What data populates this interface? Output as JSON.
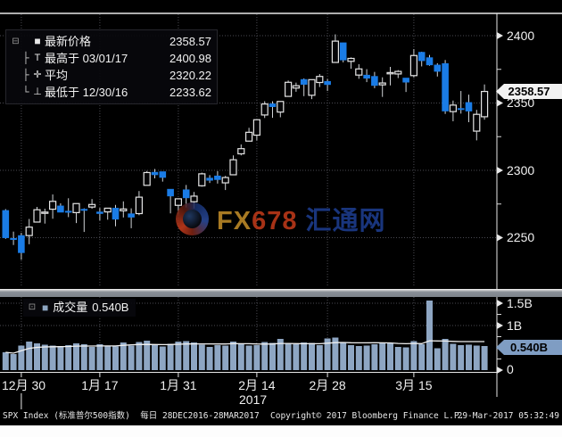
{
  "legend": {
    "expander_icon": "box-minus-expander",
    "rows": [
      {
        "marker": "last-price-square",
        "label": "最新价格",
        "value": "2358.57"
      },
      {
        "marker": "high-whisker",
        "label": "最高于 03/01/17",
        "value": "2400.98"
      },
      {
        "marker": "average-cross",
        "label": "平均",
        "value": "2320.22"
      },
      {
        "marker": "low-whisker",
        "label": "最低于 12/30/16",
        "value": "2233.62"
      }
    ]
  },
  "volume_legend": {
    "label": "成交量",
    "value": "0.540B"
  },
  "price_axis": {
    "tick_labels": [
      "2400",
      "2350",
      "2300",
      "2250"
    ],
    "last_price_tag": "2358.57"
  },
  "volume_axis": {
    "tick_labels": [
      "1.5B",
      "1B",
      "0"
    ],
    "current_tag": "0.540B"
  },
  "x_axis": {
    "year_label": "2017",
    "tick_labels": [
      "12月 30",
      "1月 17",
      "1月 31",
      "2月 14",
      "2月 28",
      "3月 15"
    ]
  },
  "watermark": {
    "fx": "FX",
    "num": "678",
    "cn": "汇通网"
  },
  "status_bar": {
    "instrument": "SPX Index (标准普尔500指数)",
    "frequency": "每日",
    "range": "28DEC2016-28MAR2017",
    "copyright": "Copyright© 2017 Bloomberg Finance L.P.",
    "timestamp": "29-Mar-2017 05:32:49"
  },
  "colors": {
    "down_candle": "#1a7ce6",
    "up_candle_outline": "#e4e4e4",
    "volume_bar": "#8ea6c3",
    "grid": "#4a4a52",
    "frame": "#e8e8e8",
    "tag_volume_bg": "#7f9dc3"
  },
  "chart_data": {
    "type": "candlestick",
    "title": "SPX Index (标准普尔500指数) 每日 28DEC2016-28MAR2017",
    "price_ylim": [
      2233.62,
      2400.98
    ],
    "price_major_ticks": [
      2400,
      2350,
      2300,
      2250
    ],
    "price_minor_ticks": [
      2375,
      2325,
      2275
    ],
    "volume_ylim_b": [
      0,
      1.5
    ],
    "volume_major_ticks_b": [
      1.5,
      1.0,
      0
    ],
    "volume_minor_ticks_b": [
      1.25,
      0.75,
      0.25
    ],
    "last_price": 2358.57,
    "high": {
      "date": "03/01/17",
      "value": 2400.98
    },
    "average": 2320.22,
    "low": {
      "date": "12/30/16",
      "value": 2233.62
    },
    "current_volume_b": 0.54,
    "x_ticks": [
      {
        "label": "12月 30",
        "day_index": 2
      },
      {
        "label": "1月 17",
        "day_index": 12
      },
      {
        "label": "1月 31",
        "day_index": 22
      },
      {
        "label": "2月 14",
        "day_index": 32
      },
      {
        "label": "2月 28",
        "day_index": 41
      },
      {
        "label": "3月 15",
        "day_index": 52
      }
    ],
    "days": [
      {
        "d": "12/28",
        "o": 2270.23,
        "h": 2271.23,
        "l": 2249.11,
        "c": 2249.92,
        "v": 0.4
      },
      {
        "d": "12/29",
        "o": 2249.5,
        "h": 2254.51,
        "l": 2244.56,
        "c": 2249.26,
        "v": 0.36
      },
      {
        "d": "12/30",
        "o": 2251.61,
        "h": 2253.58,
        "l": 2233.62,
        "c": 2238.83,
        "v": 0.55
      },
      {
        "d": "01/03",
        "o": 2251.57,
        "h": 2263.88,
        "l": 2245.13,
        "c": 2257.83,
        "v": 0.64
      },
      {
        "d": "01/04",
        "o": 2261.6,
        "h": 2272.82,
        "l": 2261.6,
        "c": 2270.75,
        "v": 0.6
      },
      {
        "d": "01/05",
        "o": 2268.18,
        "h": 2271.5,
        "l": 2260.45,
        "c": 2269.0,
        "v": 0.57
      },
      {
        "d": "01/06",
        "o": 2271.14,
        "h": 2282.1,
        "l": 2264.06,
        "c": 2276.98,
        "v": 0.55
      },
      {
        "d": "01/09",
        "o": 2273.59,
        "h": 2275.49,
        "l": 2268.9,
        "c": 2268.9,
        "v": 0.54
      },
      {
        "d": "01/10",
        "o": 2269.72,
        "h": 2279.27,
        "l": 2265.27,
        "c": 2268.9,
        "v": 0.56
      },
      {
        "d": "01/11",
        "o": 2268.6,
        "h": 2275.32,
        "l": 2260.83,
        "c": 2275.32,
        "v": 0.6
      },
      {
        "d": "01/12",
        "o": 2271.14,
        "h": 2271.78,
        "l": 2254.25,
        "c": 2270.44,
        "v": 0.58
      },
      {
        "d": "01/13",
        "o": 2272.74,
        "h": 2278.68,
        "l": 2271.51,
        "c": 2274.64,
        "v": 0.52
      },
      {
        "d": "01/17",
        "o": 2269.14,
        "h": 2272.08,
        "l": 2262.81,
        "c": 2267.89,
        "v": 0.58
      },
      {
        "d": "01/18",
        "o": 2269.14,
        "h": 2272.01,
        "l": 2263.35,
        "c": 2271.89,
        "v": 0.54
      },
      {
        "d": "01/19",
        "o": 2271.94,
        "h": 2274.33,
        "l": 2258.41,
        "c": 2263.69,
        "v": 0.53
      },
      {
        "d": "01/20",
        "o": 2269.96,
        "h": 2276.96,
        "l": 2265.01,
        "c": 2271.31,
        "v": 0.62
      },
      {
        "d": "01/23",
        "o": 2267.78,
        "h": 2271.78,
        "l": 2257.02,
        "c": 2265.2,
        "v": 0.55
      },
      {
        "d": "01/24",
        "o": 2267.88,
        "h": 2284.63,
        "l": 2266.68,
        "c": 2280.07,
        "v": 0.63
      },
      {
        "d": "01/25",
        "o": 2288.88,
        "h": 2299.55,
        "l": 2288.88,
        "c": 2298.37,
        "v": 0.66
      },
      {
        "d": "01/26",
        "o": 2298.63,
        "h": 2300.99,
        "l": 2294.08,
        "c": 2296.68,
        "v": 0.58
      },
      {
        "d": "01/27",
        "o": 2299.02,
        "h": 2299.02,
        "l": 2291.62,
        "c": 2294.69,
        "v": 0.53
      },
      {
        "d": "01/30",
        "o": 2286.01,
        "h": 2286.01,
        "l": 2268.04,
        "c": 2280.9,
        "v": 0.59
      },
      {
        "d": "01/31",
        "o": 2274.02,
        "h": 2279.09,
        "l": 2267.21,
        "c": 2278.87,
        "v": 0.64
      },
      {
        "d": "02/01",
        "o": 2285.59,
        "h": 2289.14,
        "l": 2272.44,
        "c": 2279.55,
        "v": 0.65
      },
      {
        "d": "02/02",
        "o": 2276.69,
        "h": 2283.97,
        "l": 2271.65,
        "c": 2280.85,
        "v": 0.62
      },
      {
        "d": "02/03",
        "o": 2288.54,
        "h": 2298.31,
        "l": 2287.88,
        "c": 2297.42,
        "v": 0.57
      },
      {
        "d": "02/06",
        "o": 2294.28,
        "h": 2296.47,
        "l": 2290.61,
        "c": 2292.56,
        "v": 0.52
      },
      {
        "d": "02/07",
        "o": 2295.87,
        "h": 2299.39,
        "l": 2290.16,
        "c": 2293.08,
        "v": 0.56
      },
      {
        "d": "02/08",
        "o": 2290.71,
        "h": 2295.91,
        "l": 2285.38,
        "c": 2294.67,
        "v": 0.55
      },
      {
        "d": "02/09",
        "o": 2296.7,
        "h": 2311.08,
        "l": 2296.61,
        "c": 2307.87,
        "v": 0.64
      },
      {
        "d": "02/10",
        "o": 2312.27,
        "h": 2319.23,
        "l": 2311.1,
        "c": 2316.1,
        "v": 0.58
      },
      {
        "d": "02/13",
        "o": 2321.7,
        "h": 2331.58,
        "l": 2321.42,
        "c": 2328.25,
        "v": 0.55
      },
      {
        "d": "02/14",
        "o": 2326.12,
        "h": 2337.58,
        "l": 2322.2,
        "c": 2337.58,
        "v": 0.56
      },
      {
        "d": "02/15",
        "o": 2341.11,
        "h": 2351.31,
        "l": 2338.87,
        "c": 2349.25,
        "v": 0.63
      },
      {
        "d": "02/16",
        "o": 2349.39,
        "h": 2351.31,
        "l": 2338.98,
        "c": 2347.22,
        "v": 0.61
      },
      {
        "d": "02/17",
        "o": 2343.26,
        "h": 2351.31,
        "l": 2339.41,
        "c": 2351.16,
        "v": 0.7
      },
      {
        "d": "02/21",
        "o": 2354.91,
        "h": 2366.71,
        "l": 2354.91,
        "c": 2365.38,
        "v": 0.6
      },
      {
        "d": "02/22",
        "o": 2361.11,
        "h": 2365.13,
        "l": 2358.34,
        "c": 2362.82,
        "v": 0.58
      },
      {
        "d": "02/23",
        "o": 2367.5,
        "h": 2368.26,
        "l": 2355.09,
        "c": 2363.81,
        "v": 0.62
      },
      {
        "d": "02/24",
        "o": 2355.73,
        "h": 2367.34,
        "l": 2352.87,
        "c": 2367.34,
        "v": 0.61
      },
      {
        "d": "02/27",
        "o": 2365.23,
        "h": 2371.54,
        "l": 2361.87,
        "c": 2369.73,
        "v": 0.56
      },
      {
        "d": "02/28",
        "o": 2366.08,
        "h": 2367.79,
        "l": 2358.96,
        "c": 2363.64,
        "v": 0.71
      },
      {
        "d": "03/01",
        "o": 2380.13,
        "h": 2400.98,
        "l": 2380.13,
        "c": 2395.96,
        "v": 0.73
      },
      {
        "d": "03/02",
        "o": 2394.75,
        "h": 2394.75,
        "l": 2380.17,
        "c": 2381.92,
        "v": 0.62
      },
      {
        "d": "03/03",
        "o": 2380.92,
        "h": 2383.89,
        "l": 2375.39,
        "c": 2383.12,
        "v": 0.56
      },
      {
        "d": "03/06",
        "o": 2370.74,
        "h": 2378.8,
        "l": 2367.98,
        "c": 2375.31,
        "v": 0.54
      },
      {
        "d": "03/07",
        "o": 2370.74,
        "h": 2375.12,
        "l": 2365.51,
        "c": 2368.39,
        "v": 0.55
      },
      {
        "d": "03/08",
        "o": 2369.81,
        "h": 2373.09,
        "l": 2361.01,
        "c": 2362.98,
        "v": 0.58
      },
      {
        "d": "03/09",
        "o": 2363.49,
        "h": 2369.08,
        "l": 2354.54,
        "c": 2364.87,
        "v": 0.6
      },
      {
        "d": "03/10",
        "o": 2372.52,
        "h": 2376.86,
        "l": 2363.04,
        "c": 2372.6,
        "v": 0.6
      },
      {
        "d": "03/13",
        "o": 2371.56,
        "h": 2374.42,
        "l": 2368.52,
        "c": 2373.47,
        "v": 0.52
      },
      {
        "d": "03/14",
        "o": 2368.55,
        "h": 2368.55,
        "l": 2358.18,
        "c": 2365.45,
        "v": 0.51
      },
      {
        "d": "03/15",
        "o": 2370.34,
        "h": 2390.01,
        "l": 2368.94,
        "c": 2385.26,
        "v": 0.65
      },
      {
        "d": "03/16",
        "o": 2387.71,
        "h": 2388.1,
        "l": 2377.18,
        "c": 2381.38,
        "v": 0.58
      },
      {
        "d": "03/17",
        "o": 2383.71,
        "h": 2385.71,
        "l": 2377.64,
        "c": 2378.25,
        "v": 1.56
      },
      {
        "d": "03/20",
        "o": 2378.24,
        "h": 2379.55,
        "l": 2369.66,
        "c": 2373.47,
        "v": 0.49
      },
      {
        "d": "03/21",
        "o": 2379.32,
        "h": 2381.93,
        "l": 2341.9,
        "c": 2344.02,
        "v": 0.7
      },
      {
        "d": "03/22",
        "o": 2343.61,
        "h": 2351.81,
        "l": 2336.45,
        "c": 2348.45,
        "v": 0.59
      },
      {
        "d": "03/23",
        "o": 2345.97,
        "h": 2358.92,
        "l": 2342.13,
        "c": 2345.96,
        "v": 0.56
      },
      {
        "d": "03/24",
        "o": 2350.42,
        "h": 2356.22,
        "l": 2335.74,
        "c": 2343.98,
        "v": 0.57
      },
      {
        "d": "03/27",
        "o": 2329.11,
        "h": 2344.9,
        "l": 2322.25,
        "c": 2341.59,
        "v": 0.55
      },
      {
        "d": "03/28",
        "o": 2339.79,
        "h": 2363.78,
        "l": 2337.63,
        "c": 2358.57,
        "v": 0.54
      }
    ]
  }
}
